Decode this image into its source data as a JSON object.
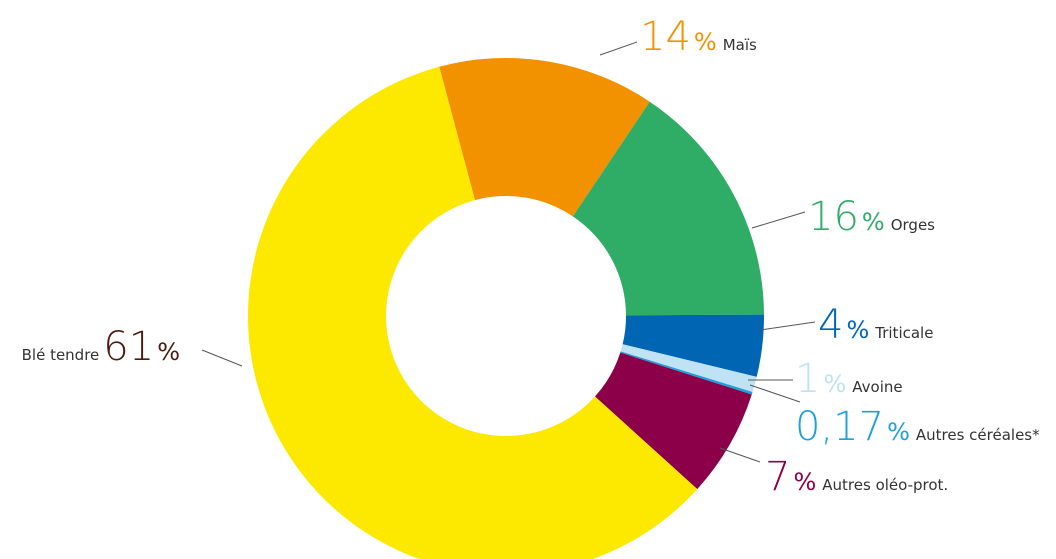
{
  "chart_data": {
    "type": "donut",
    "categories": [
      "Maïs",
      "Orges",
      "Triticale",
      "Avoine",
      "Autres céréales*",
      "Autres oléo-prot.",
      "Blé tendre"
    ],
    "values": [
      14,
      16,
      4,
      1,
      0.17,
      7,
      61
    ],
    "value_labels": [
      "14",
      "16",
      "4",
      "1",
      "0,17",
      "7",
      "61"
    ],
    "unit": "%",
    "colors": [
      "#f39200",
      "#2fac66",
      "#0066b3",
      "#bfe3f5",
      "#1fa0dc",
      "#8b0048",
      "#fde800"
    ],
    "label_colors": [
      "#f39200",
      "#2fac66",
      "#0066b3",
      "#bfe3f5",
      "#1fa0dc",
      "#8b0048",
      "#4a1a10"
    ]
  }
}
